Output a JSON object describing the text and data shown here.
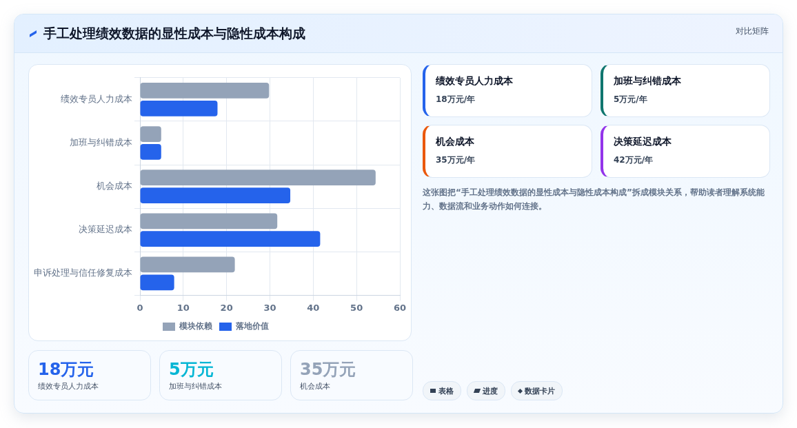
{
  "chart_data": [
    {
      "type": "bar",
      "title": "手工处理绩效数据的显性成本与隐性成本构成",
      "annotations": [
        "对比矩阵"
      ],
      "orientation": "horizontal",
      "categories": [
        "绩效专员人力成本",
        "加班与纠错成本",
        "机会成本",
        "决策延迟成本",
        "申诉处理与信任修复成本"
      ],
      "series": [
        {
          "name": "模块依赖",
          "color": "#94a3b8",
          "values": [
            29.8,
            4.9,
            54.4,
            31.7,
            21.9
          ]
        },
        {
          "name": "落地价值",
          "color": "#2563eb",
          "values": [
            17.9,
            4.9,
            34.7,
            41.6,
            7.9
          ]
        }
      ],
      "xlim": [
        0,
        60
      ],
      "xticks": [
        0,
        10,
        20,
        30,
        40,
        50,
        60
      ],
      "grid": true,
      "legend": "bottom"
    },
    {
      "type": "other",
      "annotations": [
        "绩效专员人力成本",
        "18万元/年",
        "加班与纠错成本",
        "5万元/年",
        "机会成本",
        "35万元/年",
        "决策延迟成本",
        "42万元/年",
        "这张图把“手工处理绩效数据的显性成本与隐性成本构成”拆成模块关系，帮助读者理解系统能力、数据流和业务动作如何连接。",
        "18万元",
        "绩效专员人力成本",
        "5万元",
        "加班与纠错成本",
        "35万元",
        "机会成本",
        "表格",
        "进度",
        "数据卡片"
      ]
    }
  ]
}
